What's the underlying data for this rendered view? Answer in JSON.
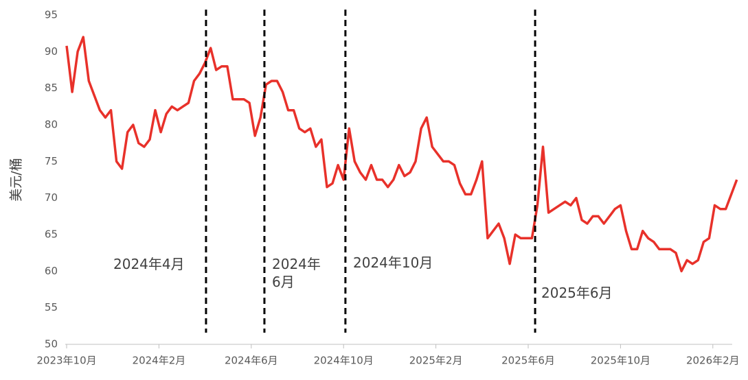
{
  "chart_data": {
    "type": "line",
    "y_label": "美元/桶",
    "xlim": [
      0,
      29.3
    ],
    "xticks": [
      {
        "value": 0,
        "label": "2023年10月"
      },
      {
        "value": 4,
        "label": "2024年2月"
      },
      {
        "value": 8,
        "label": "2024年6月"
      },
      {
        "value": 12,
        "label": "2024年10月"
      },
      {
        "value": 16,
        "label": "2025年2月"
      },
      {
        "value": 20,
        "label": "2025年6月"
      },
      {
        "value": 24,
        "label": "2025年10月"
      },
      {
        "value": 28,
        "label": "2026年2月"
      }
    ],
    "ylim": [
      50,
      95
    ],
    "yticks": [
      50,
      55,
      60,
      65,
      70,
      75,
      80,
      85,
      90,
      95
    ],
    "series": [
      {
        "color": "#e8312a",
        "x": [
          0,
          0.24,
          0.48,
          0.72,
          0.96,
          1.2,
          1.44,
          1.68,
          1.92,
          2.16,
          2.4,
          2.64,
          2.88,
          3.12,
          3.36,
          3.6,
          3.84,
          4.08,
          4.32,
          4.56,
          4.8,
          5.04,
          5.28,
          5.52,
          5.76,
          6,
          6.24,
          6.48,
          6.72,
          6.96,
          7.2,
          7.44,
          7.68,
          7.92,
          8.16,
          8.4,
          8.64,
          8.88,
          9.12,
          9.36,
          9.6,
          9.84,
          10.08,
          10.32,
          10.56,
          10.8,
          11.04,
          11.28,
          11.52,
          11.76,
          12,
          12.24,
          12.48,
          12.72,
          12.96,
          13.2,
          13.44,
          13.68,
          13.92,
          14.16,
          14.4,
          14.64,
          14.88,
          15.12,
          15.36,
          15.6,
          15.84,
          16.08,
          16.32,
          16.56,
          16.8,
          17.04,
          17.28,
          17.52,
          17.76,
          18,
          18.24,
          18.48,
          18.72,
          18.96,
          19.2,
          19.44,
          19.68,
          19.92,
          20.16,
          20.4,
          20.64,
          20.88,
          21.12,
          21.36,
          21.6,
          21.84,
          22.08,
          22.32,
          22.56,
          22.8,
          23.04,
          23.28,
          23.52,
          23.76,
          24,
          24.24,
          24.48,
          24.72,
          24.96,
          25.2,
          25.44,
          25.68,
          25.92,
          26.16,
          26.4,
          26.64,
          26.88,
          27.12,
          27.36,
          27.6,
          27.84,
          28.08,
          28.32,
          28.56,
          28.8,
          29.04
        ],
        "values": [
          90.8,
          84.5,
          90,
          92,
          86,
          84,
          82,
          81,
          82,
          75,
          74,
          79,
          80,
          77.5,
          77,
          78,
          82,
          79,
          81.5,
          82.5,
          82,
          82.5,
          83,
          86,
          87,
          88.5,
          90.5,
          87.5,
          88,
          88,
          83.5,
          83.5,
          83.5,
          83,
          78.5,
          81,
          85.5,
          86,
          86,
          84.5,
          82,
          82,
          79.5,
          79,
          79.5,
          77,
          78,
          71.5,
          72,
          74.5,
          72.5,
          79.5,
          75,
          73.5,
          72.5,
          74.5,
          72.5,
          72.5,
          71.5,
          72.5,
          74.5,
          73,
          73.5,
          75,
          79.5,
          81,
          77,
          76,
          75,
          75,
          74.5,
          72,
          70.5,
          70.5,
          72.5,
          75,
          64.5,
          65.5,
          66.5,
          64.5,
          61,
          65,
          64.5,
          64.5,
          64.5,
          69,
          77,
          68,
          68.5,
          69,
          69.5,
          69,
          70,
          67,
          66.5,
          67.5,
          67.5,
          66.5,
          67.5,
          68.5,
          69,
          65.5,
          63,
          63,
          65.5,
          64.5,
          64,
          63,
          63,
          63,
          62.5,
          60,
          61.5,
          61,
          61.5,
          64,
          64.5,
          69,
          68.5,
          68.5,
          70.5,
          72.5
        ]
      }
    ],
    "annotations": [
      {
        "label": "2024年4月",
        "x": 6.04
      },
      {
        "label": "2024年\n6月",
        "x": 8.57
      },
      {
        "label": "2024年10月",
        "x": 12.08
      },
      {
        "label": "2025年6月",
        "x": 20.3
      }
    ]
  }
}
